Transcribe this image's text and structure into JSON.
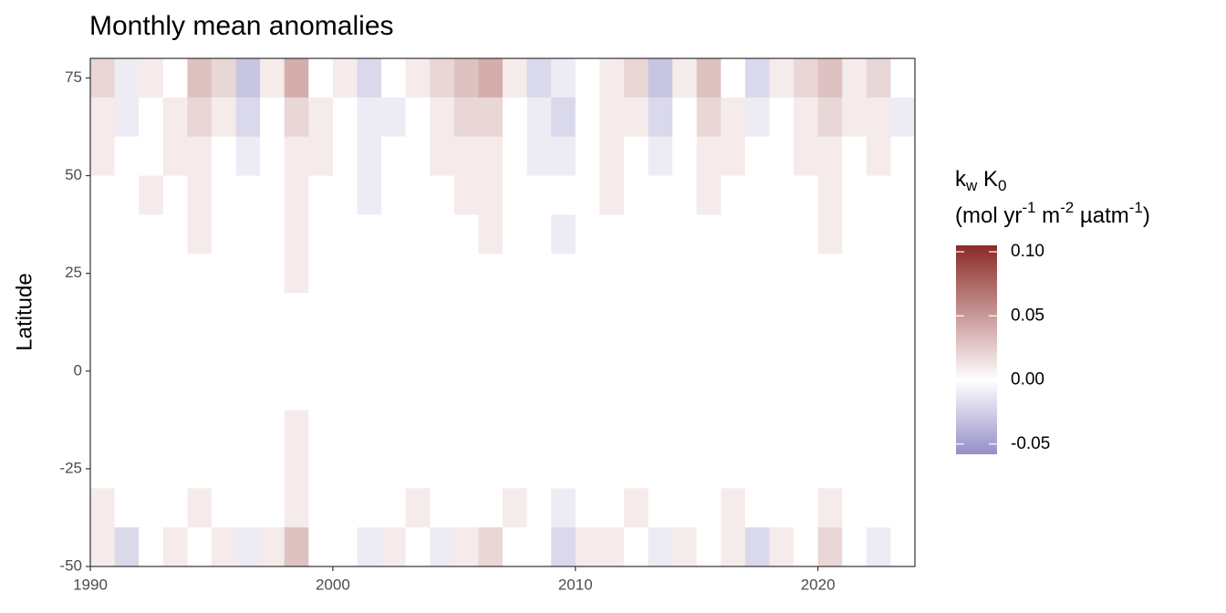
{
  "chart_data": {
    "type": "heatmap",
    "title": "Monthly mean anomalies",
    "y_label": "Latitude",
    "x": [
      1990,
      1991,
      1992,
      1993,
      1994,
      1995,
      1996,
      1997,
      1998,
      1999,
      2000,
      2001,
      2002,
      2003,
      2004,
      2005,
      2006,
      2007,
      2008,
      2009,
      2010,
      2011,
      2012,
      2013,
      2014,
      2015,
      2016,
      2017,
      2018,
      2019,
      2020,
      2021,
      2022,
      2023
    ],
    "y": [
      75,
      65,
      55,
      45,
      35,
      25,
      15,
      5,
      -5,
      -15,
      -25,
      -35,
      -45
    ],
    "values": [
      [
        0.02,
        -0.01,
        0.01,
        0.0,
        0.03,
        0.02,
        -0.03,
        0.01,
        0.04,
        0.0,
        0.01,
        -0.02,
        0.0,
        0.01,
        0.02,
        0.03,
        0.04,
        0.01,
        -0.02,
        -0.01,
        0.0,
        0.01,
        0.02,
        -0.03,
        0.01,
        0.03,
        0.0,
        -0.02,
        0.01,
        0.02,
        0.03,
        0.01,
        0.02,
        0.0
      ],
      [
        0.01,
        -0.01,
        0.0,
        0.01,
        0.02,
        0.01,
        -0.02,
        0.0,
        0.02,
        0.01,
        0.0,
        -0.01,
        -0.01,
        0.0,
        0.01,
        0.02,
        0.02,
        0.0,
        -0.01,
        -0.02,
        0.0,
        0.01,
        0.01,
        -0.02,
        0.0,
        0.02,
        0.01,
        -0.01,
        0.0,
        0.01,
        0.02,
        0.01,
        0.01,
        -0.01
      ],
      [
        0.01,
        0.0,
        0.0,
        0.01,
        0.01,
        0.0,
        -0.01,
        0.0,
        0.01,
        0.01,
        0.0,
        -0.01,
        0.0,
        0.0,
        0.01,
        0.01,
        0.01,
        0.0,
        -0.01,
        -0.01,
        0.0,
        0.01,
        0.0,
        -0.01,
        0.0,
        0.01,
        0.01,
        0.0,
        0.0,
        0.01,
        0.01,
        0.0,
        0.01,
        0.0
      ],
      [
        0.0,
        0.0,
        0.01,
        0.0,
        0.01,
        0.0,
        0.0,
        0.0,
        0.01,
        0.0,
        0.0,
        -0.01,
        0.0,
        0.0,
        0.0,
        0.01,
        0.01,
        0.0,
        0.0,
        0.0,
        0.0,
        0.01,
        0.0,
        0.0,
        0.0,
        0.01,
        0.0,
        0.0,
        0.0,
        0.0,
        0.01,
        0.0,
        0.0,
        0.0
      ],
      [
        0.0,
        0.0,
        0.0,
        0.0,
        0.01,
        0.0,
        0.0,
        0.0,
        0.01,
        0.0,
        0.0,
        0.0,
        0.0,
        0.0,
        0.0,
        0.0,
        0.01,
        0.0,
        0.0,
        -0.01,
        0.0,
        0.0,
        0.0,
        0.0,
        0.0,
        0.0,
        0.0,
        0.0,
        0.0,
        0.0,
        0.01,
        0.0,
        0.0,
        0.0
      ],
      [
        0.0,
        0.0,
        0.0,
        0.0,
        0.0,
        0.0,
        0.0,
        0.0,
        0.01,
        0.0,
        0.0,
        0.0,
        0.0,
        0.0,
        0.0,
        0.0,
        0.0,
        0.0,
        0.0,
        0.0,
        0.0,
        0.0,
        0.0,
        0.0,
        0.0,
        0.0,
        0.0,
        0.0,
        0.0,
        0.0,
        0.0,
        0.0,
        0.0,
        0.0
      ],
      [
        0.0,
        0.0,
        0.0,
        0.0,
        0.0,
        0.0,
        0.0,
        0.0,
        0.0,
        0.0,
        0.0,
        0.0,
        0.0,
        0.0,
        0.0,
        0.0,
        0.0,
        0.0,
        0.0,
        0.0,
        0.0,
        0.0,
        0.0,
        0.0,
        0.0,
        0.0,
        0.0,
        0.0,
        0.0,
        0.0,
        0.0,
        0.0,
        0.0,
        0.0
      ],
      [
        0.0,
        0.0,
        0.0,
        0.0,
        0.0,
        0.0,
        0.0,
        0.0,
        0.0,
        0.0,
        0.0,
        0.0,
        0.0,
        0.0,
        0.0,
        0.0,
        0.0,
        0.0,
        0.0,
        0.0,
        0.0,
        0.0,
        0.0,
        0.0,
        0.0,
        0.0,
        0.0,
        0.0,
        0.0,
        0.0,
        0.0,
        0.0,
        0.0,
        0.0
      ],
      [
        0.0,
        0.0,
        0.0,
        0.0,
        0.0,
        0.0,
        0.0,
        0.0,
        0.0,
        0.0,
        0.0,
        0.0,
        0.0,
        0.0,
        0.0,
        0.0,
        0.0,
        0.0,
        0.0,
        0.0,
        0.0,
        0.0,
        0.0,
        0.0,
        0.0,
        0.0,
        0.0,
        0.0,
        0.0,
        0.0,
        0.0,
        0.0,
        0.0,
        0.0
      ],
      [
        0.0,
        0.0,
        0.0,
        0.0,
        0.0,
        0.0,
        0.0,
        0.0,
        0.01,
        0.0,
        0.0,
        0.0,
        0.0,
        0.0,
        0.0,
        0.0,
        0.0,
        0.0,
        0.0,
        0.0,
        0.0,
        0.0,
        0.0,
        0.0,
        0.0,
        0.0,
        0.0,
        0.0,
        0.0,
        0.0,
        0.0,
        0.0,
        0.0,
        0.0
      ],
      [
        0.0,
        0.0,
        0.0,
        0.0,
        0.0,
        0.0,
        0.0,
        0.0,
        0.01,
        0.0,
        0.0,
        0.0,
        0.0,
        0.0,
        0.0,
        0.0,
        0.0,
        0.0,
        0.0,
        0.0,
        0.0,
        0.0,
        0.0,
        0.0,
        0.0,
        0.0,
        0.0,
        0.0,
        0.0,
        0.0,
        0.0,
        0.0,
        0.0,
        0.0
      ],
      [
        0.01,
        0.0,
        0.0,
        0.0,
        0.01,
        0.0,
        0.0,
        0.0,
        0.01,
        0.0,
        0.0,
        0.0,
        0.0,
        0.01,
        0.0,
        0.0,
        0.0,
        0.01,
        0.0,
        -0.01,
        0.0,
        0.0,
        0.01,
        0.0,
        0.0,
        0.0,
        0.01,
        0.0,
        0.0,
        0.0,
        0.01,
        0.0,
        0.0,
        0.0
      ],
      [
        0.01,
        -0.02,
        0.0,
        0.01,
        0.0,
        0.01,
        -0.01,
        0.01,
        0.03,
        0.0,
        0.0,
        -0.01,
        0.01,
        0.0,
        -0.01,
        0.01,
        0.02,
        0.0,
        0.0,
        -0.02,
        0.01,
        0.01,
        0.0,
        -0.01,
        0.01,
        0.0,
        0.01,
        -0.02,
        0.01,
        0.0,
        0.02,
        0.0,
        -0.01,
        0.0
      ]
    ],
    "xlim": [
      1990,
      2024
    ],
    "ylim": [
      -50,
      80
    ],
    "xticks": [
      1990,
      2000,
      2010,
      2020
    ],
    "yticks": [
      -50,
      -25,
      0,
      25,
      50,
      75
    ],
    "colors": {
      "low": "#958fc6",
      "mid": "#ffffff",
      "high": "#8b2a27"
    },
    "clim": [
      -0.058,
      0.105
    ],
    "cticks": [
      -0.05,
      {
        "value": 0,
        "label": "0.00"
      },
      0.05,
      {
        "value": 0.1,
        "label": "0.10"
      }
    ],
    "colorbar_title": {
      "line1": [
        {
          "text": "k"
        },
        {
          "text": "w",
          "shift": "sub"
        },
        {
          "text": " K"
        },
        {
          "text": "0",
          "shift": "sub"
        }
      ],
      "line2": [
        {
          "text": "(mol yr"
        },
        {
          "text": "-1",
          "shift": "super"
        },
        {
          "text": " m"
        },
        {
          "text": "-2",
          "shift": "super"
        },
        {
          "text": " µatm"
        },
        {
          "text": "-1",
          "shift": "super"
        },
        {
          "text": ")"
        }
      ]
    }
  }
}
